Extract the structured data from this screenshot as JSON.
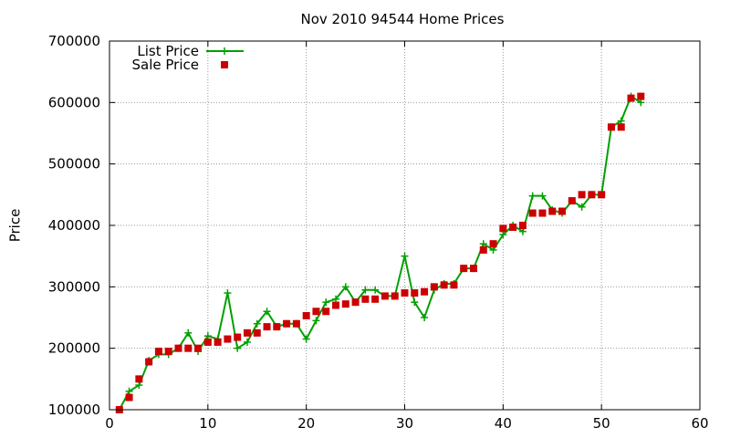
{
  "chart_data": {
    "type": "line",
    "title": "Nov 2010 94544 Home Prices",
    "xlabel": "",
    "ylabel": "Price",
    "xlim": [
      0,
      60
    ],
    "ylim": [
      100000,
      700000
    ],
    "x_ticks": [
      0,
      10,
      20,
      30,
      40,
      50,
      60
    ],
    "y_ticks": [
      100000,
      200000,
      300000,
      400000,
      500000,
      600000,
      700000
    ],
    "grid": true,
    "legend_position": "top-left",
    "series": [
      {
        "name": "List Price",
        "style": "line-with-plus-markers",
        "color": "#00a000",
        "x": [
          1,
          2,
          3,
          4,
          5,
          6,
          7,
          8,
          9,
          10,
          11,
          12,
          13,
          14,
          15,
          16,
          17,
          18,
          19,
          20,
          21,
          22,
          23,
          24,
          25,
          26,
          27,
          28,
          29,
          30,
          31,
          32,
          33,
          34,
          35,
          36,
          37,
          38,
          39,
          40,
          41,
          42,
          43,
          44,
          45,
          46,
          47,
          48,
          49,
          50,
          51,
          52,
          53,
          54
        ],
        "values": [
          100000,
          130000,
          140000,
          180000,
          190000,
          190000,
          200000,
          225000,
          195000,
          220000,
          215000,
          290000,
          200000,
          210000,
          240000,
          260000,
          235000,
          240000,
          240000,
          215000,
          245000,
          275000,
          280000,
          300000,
          275000,
          295000,
          295000,
          285000,
          285000,
          350000,
          275000,
          250000,
          295000,
          305000,
          305000,
          330000,
          330000,
          370000,
          360000,
          385000,
          400000,
          390000,
          448000,
          448000,
          425000,
          420000,
          440000,
          430000,
          450000,
          450000,
          560000,
          570000,
          610000,
          600000
        ]
      },
      {
        "name": "Sale Price",
        "style": "square-markers",
        "color": "#cc0000",
        "x": [
          1,
          2,
          3,
          4,
          5,
          6,
          7,
          8,
          9,
          10,
          11,
          12,
          13,
          14,
          15,
          16,
          17,
          18,
          19,
          20,
          21,
          22,
          23,
          24,
          25,
          26,
          27,
          28,
          29,
          30,
          31,
          32,
          33,
          34,
          35,
          36,
          37,
          38,
          39,
          40,
          41,
          42,
          43,
          44,
          45,
          46,
          47,
          48,
          49,
          50,
          51,
          52,
          53,
          54
        ],
        "values": [
          100000,
          120000,
          150000,
          178000,
          195000,
          195000,
          200000,
          200000,
          200000,
          210000,
          210000,
          215000,
          218000,
          225000,
          225000,
          235000,
          235000,
          240000,
          240000,
          253000,
          260000,
          260000,
          270000,
          272000,
          275000,
          280000,
          280000,
          285000,
          285000,
          290000,
          290000,
          292000,
          300000,
          303000,
          303000,
          330000,
          330000,
          360000,
          370000,
          395000,
          397000,
          400000,
          420000,
          420000,
          423000,
          423000,
          440000,
          450000,
          450000,
          450000,
          560000,
          560000,
          607000,
          610000
        ]
      }
    ]
  }
}
